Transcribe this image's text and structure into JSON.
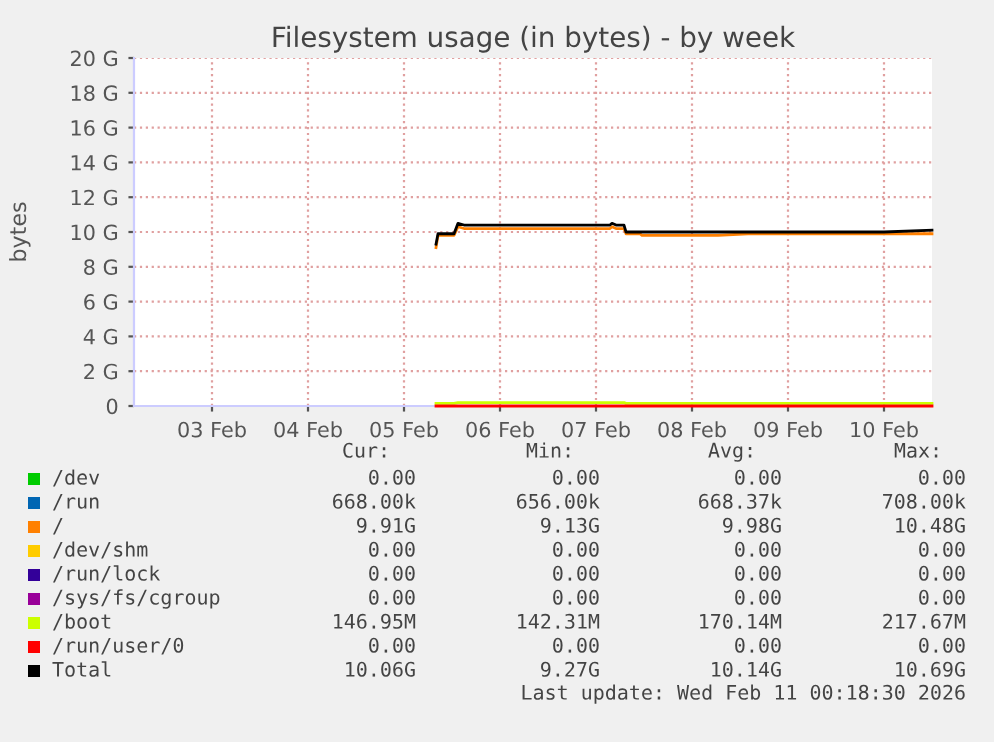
{
  "chart_data": {
    "type": "line",
    "title": "Filesystem usage (in bytes) - by week",
    "ylabel": "bytes",
    "x": [
      "2026-02-05T20:00",
      "2026-02-05T20:30",
      "2026-02-06T00:30",
      "2026-02-06T01:30",
      "2026-02-06T03:00",
      "2026-02-07T15:30",
      "2026-02-07T16:00",
      "2026-02-07T17:00",
      "2026-02-07T19:00",
      "2026-02-07T19:30",
      "2026-02-07T23:00",
      "2026-02-07T23:30",
      "2026-02-08T18:30",
      "2026-02-09T02:00",
      "2026-02-09T11:00",
      "2026-02-10T00:00",
      "2026-02-10T12:00",
      "2026-02-11T00:00"
    ],
    "series": [
      {
        "name": "/dev",
        "color": "#00cc00",
        "values": [
          null,
          null,
          null,
          null,
          null,
          null,
          null,
          null,
          null,
          null,
          null,
          null,
          null,
          null,
          null,
          null,
          null,
          null
        ]
      },
      {
        "name": "/run",
        "color": "#0066b3",
        "values": [
          null,
          null,
          null,
          null,
          null,
          null,
          null,
          null,
          null,
          null,
          null,
          null,
          null,
          null,
          null,
          null,
          null,
          null
        ]
      },
      {
        "name": "/",
        "color": "#ff8000",
        "values": [
          9.1,
          9.8,
          9.8,
          10.3,
          10.2,
          10.2,
          10.3,
          10.2,
          10.2,
          9.9,
          9.9,
          9.8,
          9.8,
          9.9,
          9.9,
          9.9,
          9.9,
          9.9
        ]
      },
      {
        "name": "/dev/shm",
        "color": "#ffcc00",
        "values": [
          null,
          null,
          null,
          null,
          null,
          null,
          null,
          null,
          null,
          null,
          null,
          null,
          null,
          null,
          null,
          null,
          null,
          null
        ]
      },
      {
        "name": "/run/lock",
        "color": "#330099",
        "values": [
          null,
          null,
          null,
          null,
          null,
          null,
          null,
          null,
          null,
          null,
          null,
          null,
          null,
          null,
          null,
          null,
          null,
          null
        ]
      },
      {
        "name": "/sys/fs/cgroup",
        "color": "#990099",
        "values": [
          null,
          null,
          null,
          null,
          null,
          null,
          null,
          null,
          null,
          null,
          null,
          null,
          null,
          null,
          null,
          null,
          null,
          null
        ]
      },
      {
        "name": "/boot",
        "color": "#ccff00",
        "values": [
          0.15,
          0.15,
          0.15,
          0.2,
          0.2,
          0.2,
          0.2,
          0.2,
          0.2,
          0.15,
          0.15,
          0.15,
          0.15,
          0.15,
          0.15,
          0.15,
          0.15,
          0.15
        ]
      },
      {
        "name": "/run/user/0",
        "color": "#ff0000",
        "values": [
          0,
          0,
          0,
          0,
          0,
          0,
          0,
          0,
          0,
          0,
          0,
          0,
          0,
          0,
          0,
          0,
          0,
          0
        ]
      },
      {
        "name": "Total",
        "color": "#000000",
        "values": [
          9.3,
          9.9,
          9.9,
          10.5,
          10.4,
          10.4,
          10.5,
          10.4,
          10.4,
          10.0,
          10.0,
          10.0,
          10.0,
          10.0,
          10.0,
          10.0,
          10.0,
          10.1
        ]
      }
    ],
    "xlim": [
      "2026-02-02T16:30",
      "2026-02-11T00:00"
    ],
    "xticks": [
      {
        "value": "2026-02-03T12:00",
        "label": "03 Feb"
      },
      {
        "value": "2026-02-04T12:00",
        "label": "04 Feb"
      },
      {
        "value": "2026-02-05T12:00",
        "label": "05 Feb"
      },
      {
        "value": "2026-02-06T12:00",
        "label": "06 Feb"
      },
      {
        "value": "2026-02-07T12:00",
        "label": "07 Feb"
      },
      {
        "value": "2026-02-08T12:00",
        "label": "08 Feb"
      },
      {
        "value": "2026-02-09T12:00",
        "label": "09 Feb"
      },
      {
        "value": "2026-02-10T12:00",
        "label": "10 Feb"
      }
    ],
    "ylim": [
      0,
      20
    ],
    "yticks": [
      0,
      {
        "value": 2,
        "label": "2 G"
      },
      {
        "value": 4,
        "label": "4 G"
      },
      {
        "value": 6,
        "label": "6 G"
      },
      {
        "value": 8,
        "label": "8 G"
      },
      {
        "value": 10,
        "label": "10 G"
      },
      {
        "value": 12,
        "label": "12 G"
      },
      {
        "value": 14,
        "label": "14 G"
      },
      {
        "value": 16,
        "label": "16 G"
      },
      {
        "value": 18,
        "label": "18 G"
      },
      {
        "value": 20,
        "label": "20 G"
      }
    ],
    "grid": true,
    "legend": "bottom",
    "marker": "none",
    "line_style": "solid",
    "annotations": [
      "Cur:",
      "Min:",
      "Avg:",
      "Max:",
      "0.00",
      "0.00",
      "0.00",
      "0.00",
      "668.00k",
      "656.00k",
      "668.37k",
      "708.00k",
      "9.91G",
      "9.13G",
      "9.98G",
      "10.48G",
      "0.00",
      "0.00",
      "0.00",
      "0.00",
      "0.00",
      "0.00",
      "0.00",
      "0.00",
      "0.00",
      "0.00",
      "0.00",
      "0.00",
      "146.95M",
      "142.31M",
      "170.14M",
      "217.67M",
      "0.00",
      "0.00",
      "0.00",
      "0.00",
      "10.06G",
      "9.27G",
      "10.14G",
      "10.69G",
      "Last update: Wed Feb 11 00:18:30 2026"
    ]
  }
}
